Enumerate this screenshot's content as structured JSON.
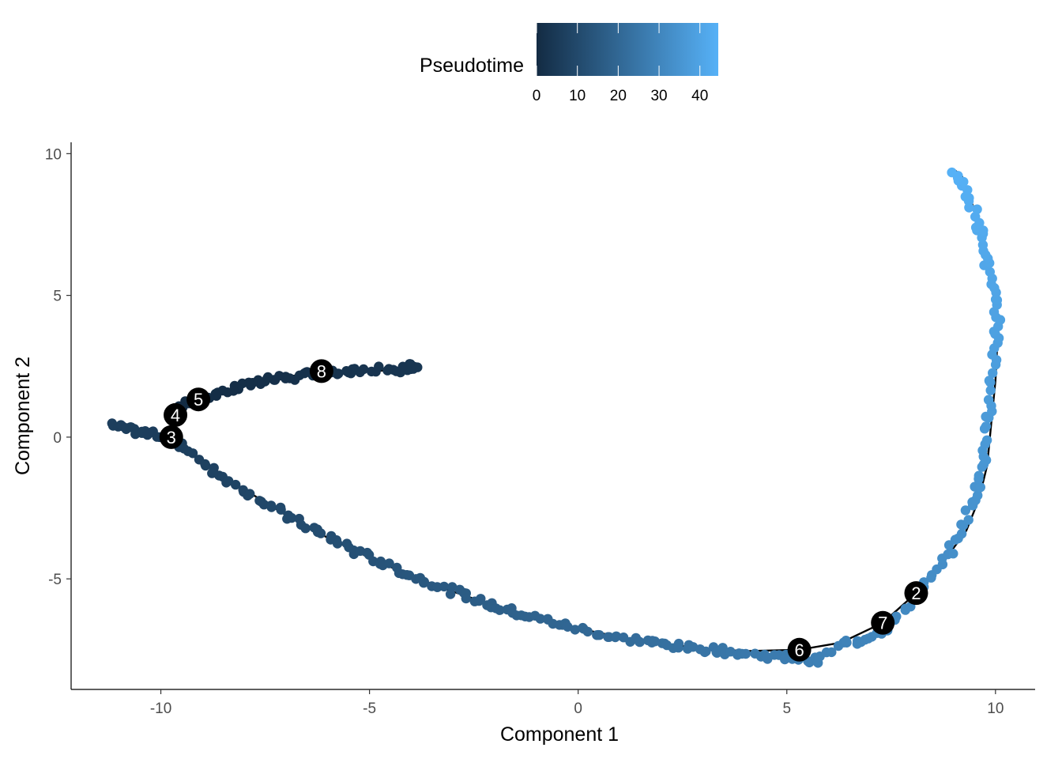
{
  "chart_data": {
    "type": "scatter",
    "xlabel": "Component 1",
    "ylabel": "Component 2",
    "xlim": [
      -12.15,
      10.95
    ],
    "ylim": [
      -8.9,
      10.4
    ],
    "xticks": [
      -10,
      -5,
      0,
      5,
      10
    ],
    "xtick_labels": [
      "-10",
      "-5",
      "0",
      "5",
      "10"
    ],
    "yticks": [
      -5,
      0,
      5,
      10
    ],
    "ytick_labels": [
      "-5",
      "0",
      "5",
      "10"
    ],
    "grid": false,
    "legend": {
      "title": "Pseudotime",
      "placement": "top",
      "range": [
        0,
        44.5
      ],
      "color_low": "#132B43",
      "color_high": "#56B1F7",
      "ticks": [
        0,
        10,
        20,
        30,
        40
      ],
      "tick_labels": [
        "0",
        "10",
        "20",
        "30",
        "40"
      ]
    },
    "trajectory_color": "#000000",
    "branch_nodes": [
      {
        "label": "3",
        "x": -9.75,
        "y": 0.0
      },
      {
        "label": "4",
        "x": -9.65,
        "y": 0.78
      },
      {
        "label": "5",
        "x": -9.1,
        "y": 1.33
      },
      {
        "label": "8",
        "x": -6.15,
        "y": 2.33
      },
      {
        "label": "6",
        "x": 5.3,
        "y": -7.5
      },
      {
        "label": "7",
        "x": 7.3,
        "y": -6.55
      },
      {
        "label": "2",
        "x": 8.1,
        "y": -5.5
      }
    ],
    "trajectory_branches": [
      {
        "name": "upper-arm",
        "points": [
          [
            -9.75,
            0.0
          ],
          [
            -9.65,
            0.78
          ],
          [
            -9.1,
            1.33
          ],
          [
            -8.2,
            1.72
          ],
          [
            -7.3,
            2.05
          ],
          [
            -6.15,
            2.33
          ],
          [
            -5.0,
            2.32
          ],
          [
            -3.9,
            2.42
          ]
        ]
      },
      {
        "name": "left-tip",
        "points": [
          [
            -9.75,
            0.0
          ],
          [
            -10.5,
            0.22
          ],
          [
            -11.1,
            0.38
          ]
        ]
      },
      {
        "name": "main-arc",
        "points": [
          [
            -9.75,
            0.0
          ],
          [
            -9.0,
            -0.85
          ],
          [
            -8.0,
            -1.85
          ],
          [
            -7.0,
            -2.75
          ],
          [
            -6.0,
            -3.55
          ],
          [
            -5.0,
            -4.25
          ],
          [
            -4.0,
            -4.9
          ],
          [
            -3.0,
            -5.45
          ],
          [
            -2.0,
            -5.95
          ],
          [
            -1.0,
            -6.4
          ],
          [
            0.0,
            -6.75
          ],
          [
            1.0,
            -7.05
          ],
          [
            2.0,
            -7.3
          ],
          [
            3.0,
            -7.45
          ],
          [
            4.0,
            -7.55
          ],
          [
            5.3,
            -7.5
          ],
          [
            6.3,
            -7.25
          ],
          [
            7.3,
            -6.55
          ],
          [
            8.1,
            -5.5
          ],
          [
            8.7,
            -4.5
          ],
          [
            9.3,
            -3.3
          ],
          [
            9.6,
            -2.2
          ],
          [
            9.8,
            -1.0
          ],
          [
            9.9,
            0.5
          ],
          [
            10.0,
            2.0
          ],
          [
            10.05,
            3.5
          ],
          [
            10.0,
            5.0
          ],
          [
            9.8,
            6.5
          ],
          [
            9.5,
            8.0
          ],
          [
            9.2,
            9.2
          ],
          [
            9.0,
            9.45
          ]
        ]
      }
    ],
    "cell_segments": [
      {
        "name": "upper-arm-cells",
        "t_range": [
          4.0,
          0.0
        ],
        "points": [
          [
            -3.85,
            2.45
          ],
          [
            -4.0,
            2.52
          ],
          [
            -4.2,
            2.38
          ],
          [
            -4.6,
            2.4
          ],
          [
            -5.2,
            2.32
          ],
          [
            -5.6,
            2.3
          ],
          [
            -6.0,
            2.32
          ],
          [
            -6.4,
            2.25
          ],
          [
            -6.8,
            2.12
          ],
          [
            -7.2,
            2.05
          ],
          [
            -7.6,
            1.95
          ],
          [
            -8.0,
            1.82
          ],
          [
            -8.4,
            1.68
          ],
          [
            -8.8,
            1.5
          ],
          [
            -9.1,
            1.33
          ],
          [
            -9.4,
            1.15
          ],
          [
            -9.6,
            0.95
          ]
        ]
      },
      {
        "name": "left-tip-cells",
        "t_range": [
          6.5,
          6.0
        ],
        "points": [
          [
            -11.15,
            0.42
          ],
          [
            -10.9,
            0.3
          ],
          [
            -10.6,
            0.2
          ],
          [
            -10.3,
            0.12
          ],
          [
            -10.0,
            0.06
          ]
        ]
      },
      {
        "name": "main-arc-cells",
        "t_range": [
          6.0,
          44.5
        ],
        "points": [
          [
            -9.75,
            0.0
          ],
          [
            -9.3,
            -0.55
          ],
          [
            -8.8,
            -1.1
          ],
          [
            -8.3,
            -1.6
          ],
          [
            -7.8,
            -2.05
          ],
          [
            -7.3,
            -2.5
          ],
          [
            -6.8,
            -2.9
          ],
          [
            -6.3,
            -3.3
          ],
          [
            -5.8,
            -3.65
          ],
          [
            -5.3,
            -4.05
          ],
          [
            -4.8,
            -4.35
          ],
          [
            -4.3,
            -4.7
          ],
          [
            -3.8,
            -5.0
          ],
          [
            -3.3,
            -5.25
          ],
          [
            -2.8,
            -5.55
          ],
          [
            -2.3,
            -5.8
          ],
          [
            -1.8,
            -6.05
          ],
          [
            -1.3,
            -6.25
          ],
          [
            -0.8,
            -6.45
          ],
          [
            -0.3,
            -6.65
          ],
          [
            0.3,
            -6.85
          ],
          [
            0.8,
            -7.05
          ],
          [
            1.3,
            -7.15
          ],
          [
            1.8,
            -7.25
          ],
          [
            2.3,
            -7.35
          ],
          [
            2.8,
            -7.45
          ],
          [
            3.3,
            -7.5
          ],
          [
            3.8,
            -7.6
          ],
          [
            4.3,
            -7.7
          ],
          [
            4.8,
            -7.75
          ],
          [
            5.3,
            -7.8
          ],
          [
            5.7,
            -7.9
          ],
          [
            6.3,
            -7.3
          ],
          [
            6.8,
            -7.15
          ],
          [
            7.3,
            -6.85
          ],
          [
            7.7,
            -6.35
          ],
          [
            8.1,
            -5.6
          ],
          [
            8.5,
            -4.9
          ],
          [
            8.9,
            -4.0
          ],
          [
            9.2,
            -3.2
          ],
          [
            9.45,
            -2.3
          ],
          [
            9.65,
            -1.5
          ],
          [
            9.75,
            -0.6
          ],
          [
            9.8,
            0.4
          ],
          [
            9.85,
            1.4
          ],
          [
            9.95,
            2.5
          ],
          [
            10.05,
            3.4
          ],
          [
            10.05,
            4.3
          ],
          [
            9.95,
            5.1
          ],
          [
            9.8,
            6.0
          ],
          [
            9.7,
            6.8
          ],
          [
            9.6,
            7.5
          ],
          [
            9.4,
            8.3
          ],
          [
            9.2,
            9.0
          ],
          [
            9.0,
            9.5
          ]
        ]
      }
    ]
  }
}
